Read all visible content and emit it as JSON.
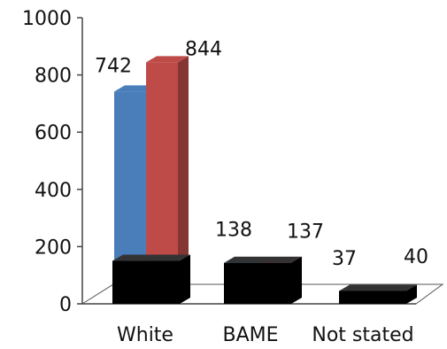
{
  "chart_data": {
    "type": "bar",
    "title": "",
    "xlabel": "",
    "ylabel": "",
    "categories": [
      "White",
      "BAME",
      "Not stated"
    ],
    "series": [
      {
        "values": [
          742,
          138,
          37
        ],
        "color": "#4a7ebb"
      },
      {
        "values": [
          844,
          137,
          40
        ],
        "color": "#be4b48"
      }
    ],
    "data_labels": [
      "742",
      "844",
      "138",
      "137",
      "37",
      "40"
    ],
    "ylim": [
      0,
      1000
    ],
    "yticks": [
      "0",
      "200",
      "400",
      "600",
      "800",
      "1000"
    ],
    "grid": false,
    "style": "3d-column",
    "overlay_color": "#000000"
  }
}
